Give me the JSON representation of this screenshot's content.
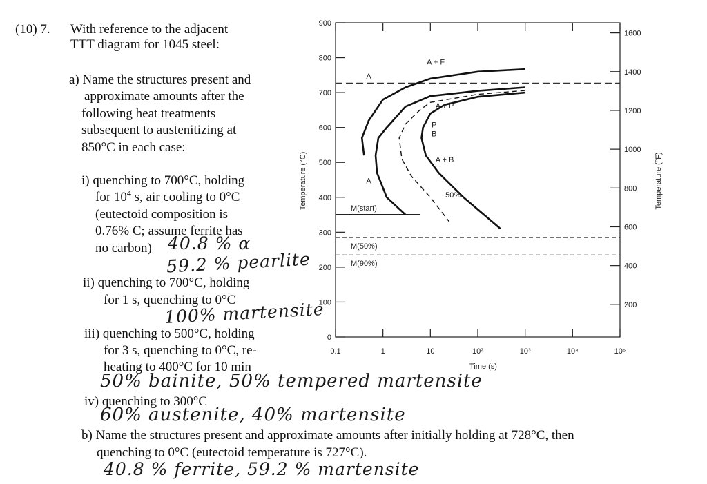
{
  "question": {
    "number": "(10) 7.",
    "lead_line1": "With reference to the adjacent",
    "lead_line2": "TTT diagram for 1045 steel:",
    "part_a_1": "a) Name the structures present and",
    "part_a_2": "approximate amounts after the",
    "part_a_3": "following heat treatments",
    "part_a_4": "subsequent to austenitizing at",
    "part_a_5": "850°C in each case:",
    "i_1": "i) quenching to 700°C, holding",
    "i_2a": "for 10",
    "i_2sup": "4",
    "i_2b": " s, air cooling to 0°C",
    "i_3": "(eutectoid composition is",
    "i_4": "0.76% C; assume ferrite has",
    "i_5": "no carbon)",
    "ii_1": "ii) quenching to 700°C, holding",
    "ii_2": "for 1 s, quenching to 0°C",
    "iii_1": "iii) quenching to 500°C, holding",
    "iii_2": "for 3 s, quenching to 0°C, re-",
    "iii_3": "heating to 400°C for 10 min",
    "iv_1": "iv) quenching to 300°C",
    "b_1": "b) Name the structures present and approximate amounts after initially holding at 728°C, then",
    "b_2": "quenching to 0°C (eutectoid temperature is 727°C)."
  },
  "answers": {
    "i_a": "40.8 % α",
    "i_b": "59.2 % pearlite",
    "ii": "100% martensite",
    "iii": "50% bainite, 50% tempered martensite",
    "iv": "60% austenite, 40% martensite",
    "b": "40.8 % ferrite, 59.2 % martensite"
  },
  "chart_data": {
    "type": "line",
    "xlabel": "Time (s)",
    "ylabel": "Temperature (°C)",
    "ylabel_right": "Temperature (°F)",
    "x_scale": "log",
    "xlim": [
      0.1,
      100000
    ],
    "ylim": [
      0,
      900
    ],
    "x_ticks": [
      "0.1",
      "1",
      "10",
      "10²",
      "10³",
      "10⁴",
      "10⁵"
    ],
    "y_ticks": [
      "0",
      "100",
      "200",
      "300",
      "400",
      "500",
      "600",
      "700",
      "800",
      "900"
    ],
    "y_right_ticks": [
      "200",
      "400",
      "600",
      "800",
      "1000",
      "1200",
      "1400",
      "1600"
    ],
    "eutectoid_line_c": 727,
    "ms_lines": [
      {
        "label": "M(start)",
        "temp": 350,
        "t_end": 6
      },
      {
        "label": "M(50%)",
        "temp": 285
      },
      {
        "label": "M(90%)",
        "temp": 235
      }
    ],
    "region_labels": [
      {
        "label": "A",
        "t": 0.5,
        "temp": 740
      },
      {
        "label": "A + F",
        "t": 13,
        "temp": 780
      },
      {
        "label": "A + P",
        "t": 20,
        "temp": 655
      },
      {
        "label": "P",
        "t": 12,
        "temp": 600
      },
      {
        "label": "B",
        "t": 12,
        "temp": 575
      },
      {
        "label": "A + B",
        "t": 20,
        "temp": 500
      },
      {
        "label": "A",
        "t": 0.5,
        "temp": 440
      },
      {
        "label": "50%",
        "t": 30,
        "temp": 400
      }
    ],
    "curves": [
      {
        "id": "ferrite-start",
        "style": "solid",
        "points": [
          [
            1000,
            767
          ],
          [
            100,
            760
          ],
          [
            10,
            740
          ],
          [
            3,
            715
          ],
          [
            1,
            680
          ],
          [
            0.5,
            620
          ],
          [
            0.36,
            570
          ],
          [
            0.4,
            520
          ]
        ]
      },
      {
        "id": "pearlite-start",
        "style": "solid",
        "points": [
          [
            1000,
            715
          ],
          [
            100,
            705
          ],
          [
            10,
            690
          ],
          [
            3,
            660
          ],
          [
            1.2,
            600
          ],
          [
            0.8,
            570
          ],
          [
            0.7,
            520
          ],
          [
            0.75,
            470
          ],
          [
            1.2,
            400
          ],
          [
            3,
            350
          ]
        ]
      },
      {
        "id": "transformation-50pct",
        "style": "dashed",
        "points": [
          [
            1000,
            706
          ],
          [
            100,
            695
          ],
          [
            10,
            672
          ],
          [
            6,
            650
          ],
          [
            3,
            610
          ],
          [
            2.2,
            570
          ],
          [
            2.5,
            510
          ],
          [
            4,
            460
          ],
          [
            10,
            400
          ],
          [
            25,
            330
          ]
        ]
      },
      {
        "id": "transformation-finish",
        "style": "solid",
        "points": [
          [
            1000,
            700
          ],
          [
            100,
            688
          ],
          [
            20,
            665
          ],
          [
            10,
            640
          ],
          [
            7,
            600
          ],
          [
            6.5,
            570
          ],
          [
            8,
            520
          ],
          [
            15,
            470
          ],
          [
            50,
            400
          ],
          [
            300,
            310
          ]
        ]
      }
    ]
  }
}
